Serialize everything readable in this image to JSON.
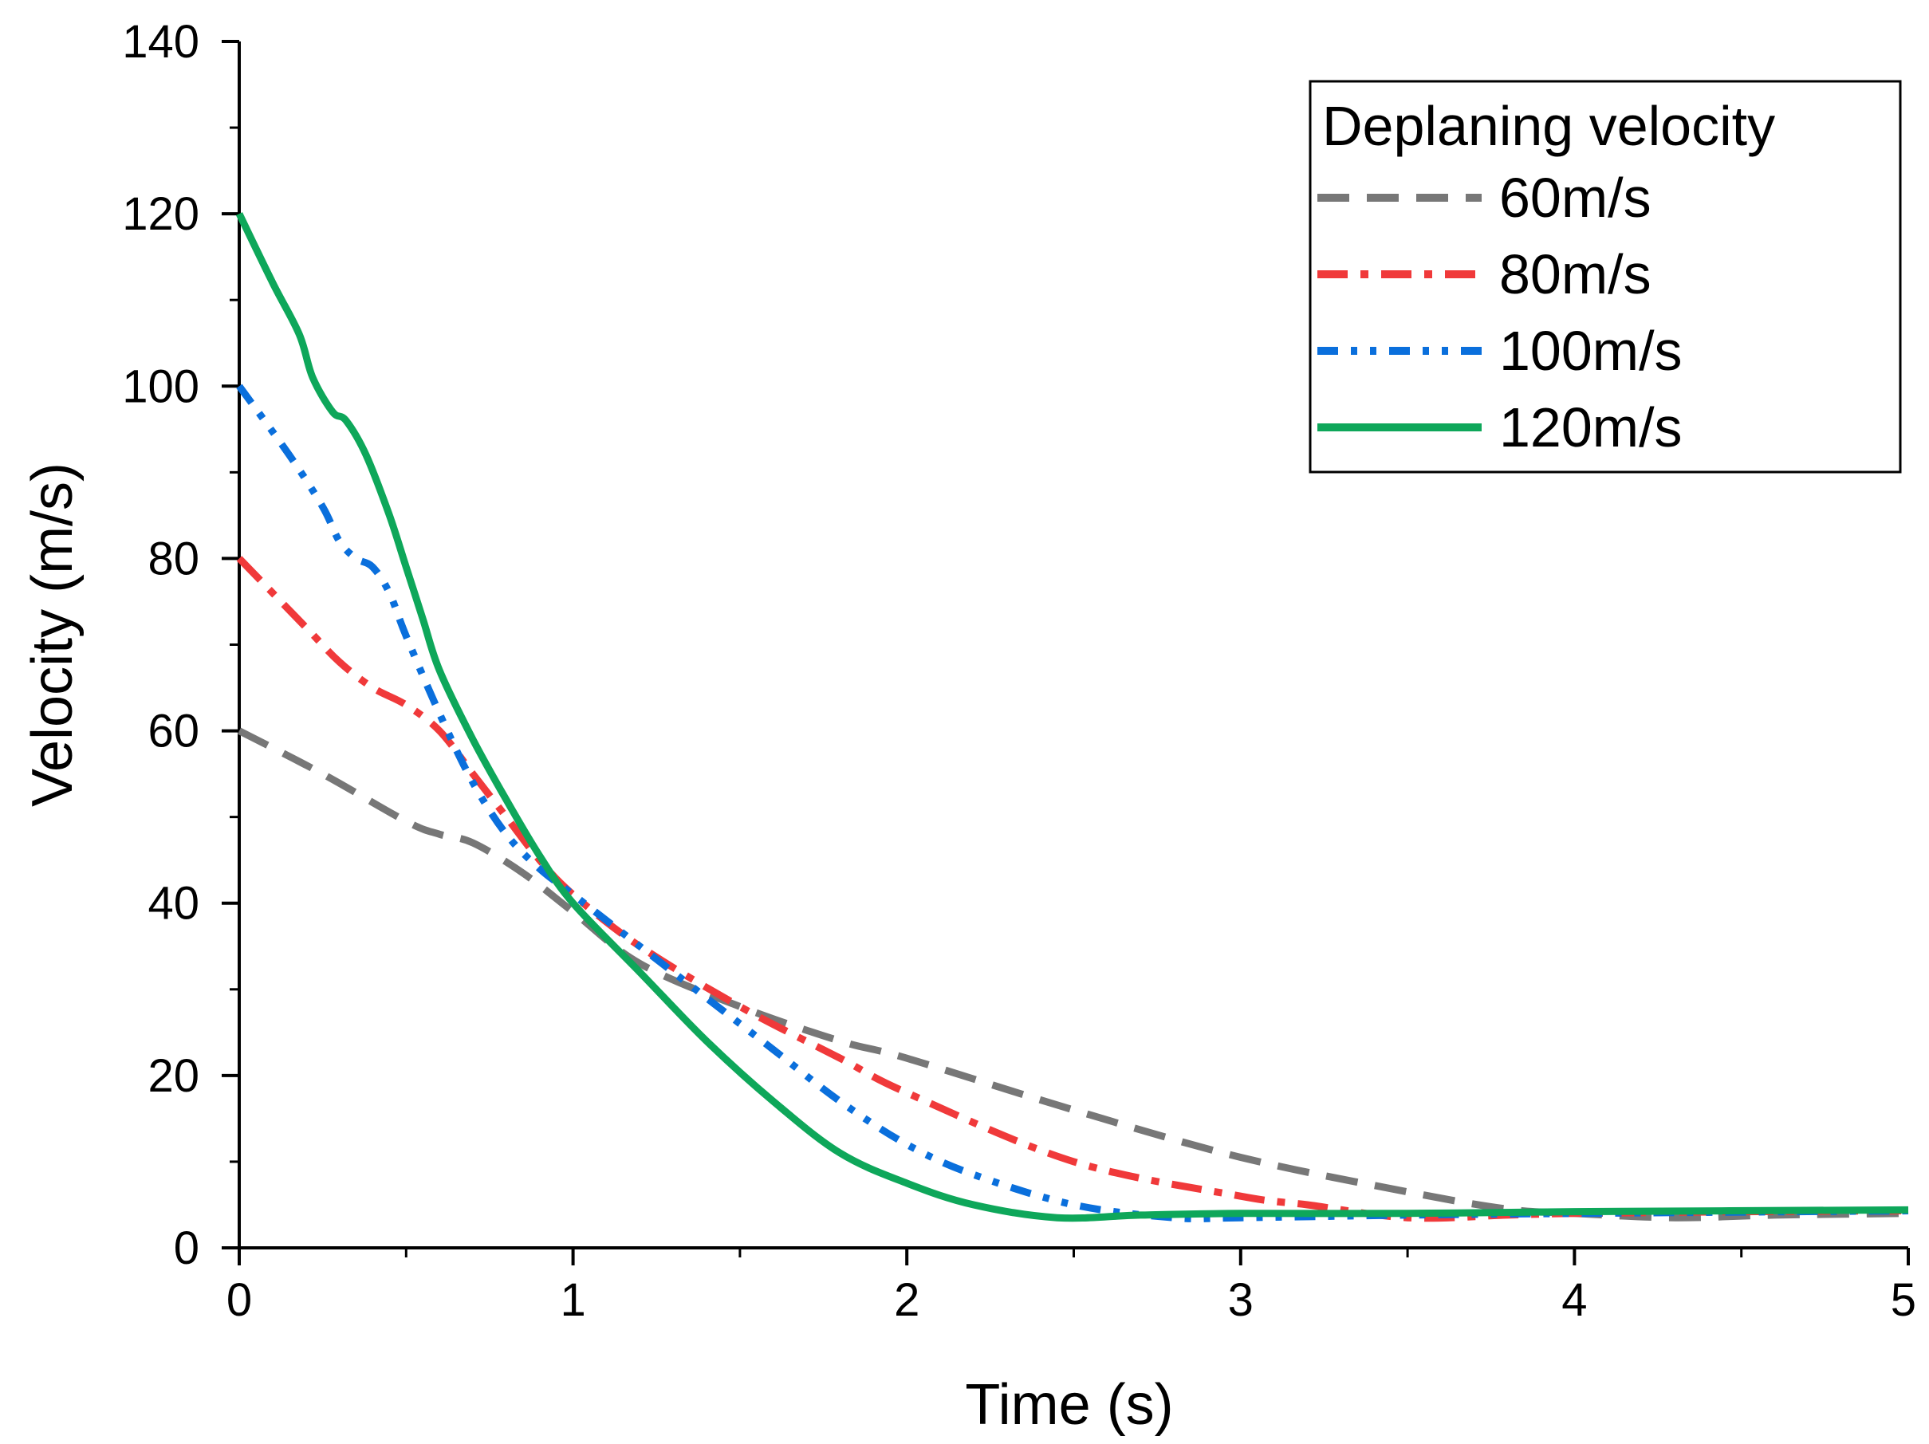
{
  "chart_data": {
    "type": "line",
    "xlabel": "Time (s)",
    "ylabel": "Velocity (m/s)",
    "xlim": [
      0,
      5
    ],
    "ylim": [
      0,
      140
    ],
    "x_ticks": [
      "0",
      "1",
      "2",
      "3",
      "4",
      "5"
    ],
    "y_ticks": [
      "0",
      "20",
      "40",
      "60",
      "80",
      "100",
      "120",
      "140"
    ],
    "grid": false,
    "legend": {
      "title": "Deplaning velocity",
      "position": "top-right"
    },
    "series": [
      {
        "name": "60m/s",
        "color": "#777777",
        "style": "dash",
        "x": [
          0,
          0.25,
          0.5,
          0.6,
          0.7,
          0.85,
          1.0,
          1.2,
          1.5,
          1.8,
          2.0,
          2.5,
          3.0,
          3.5,
          3.8,
          4.0,
          4.3,
          4.6,
          5.0
        ],
        "y": [
          60,
          55,
          49.5,
          48,
          47,
          43.5,
          39,
          33,
          28,
          24,
          22,
          16,
          10.5,
          6.5,
          4.5,
          4,
          3.5,
          3.8,
          4
        ]
      },
      {
        "name": "80m/s",
        "color": "#f0393a",
        "style": "dashdot",
        "x": [
          0,
          0.2,
          0.3,
          0.4,
          0.5,
          0.6,
          0.7,
          0.8,
          0.9,
          1.0,
          1.2,
          1.5,
          1.8,
          2.0,
          2.5,
          3.0,
          3.2,
          3.5,
          3.8,
          4.0,
          4.5,
          5.0
        ],
        "y": [
          80,
          72,
          68,
          65,
          63,
          60,
          55,
          50,
          45,
          41,
          35,
          28,
          22,
          18,
          10,
          6,
          5,
          3.5,
          3.8,
          4,
          4.2,
          4.3
        ]
      },
      {
        "name": "100m/s",
        "color": "#0a6fdc",
        "style": "shortdot",
        "x": [
          0,
          0.15,
          0.25,
          0.3,
          0.35,
          0.4,
          0.45,
          0.5,
          0.6,
          0.7,
          0.8,
          0.9,
          1.0,
          1.2,
          1.4,
          1.6,
          1.8,
          2.0,
          2.2,
          2.5,
          2.8,
          3.0,
          3.5,
          4.0,
          5.0
        ],
        "y": [
          100,
          92,
          86,
          82,
          80,
          79,
          76,
          71,
          62,
          54,
          48,
          44,
          41,
          35,
          29,
          23,
          17,
          12,
          8.5,
          5,
          3.5,
          3.5,
          3.8,
          4,
          4.3
        ]
      },
      {
        "name": "120m/s",
        "color": "#0ea75a",
        "style": "solid",
        "x": [
          0,
          0.1,
          0.18,
          0.22,
          0.28,
          0.32,
          0.38,
          0.45,
          0.5,
          0.55,
          0.6,
          0.7,
          0.8,
          0.9,
          1.0,
          1.2,
          1.4,
          1.6,
          1.8,
          2.0,
          2.2,
          2.45,
          2.7,
          3.0,
          3.5,
          4.0,
          5.0
        ],
        "y": [
          120,
          112,
          106,
          101,
          97,
          96,
          92,
          85,
          79,
          73,
          67,
          59,
          52,
          45.5,
          40,
          32,
          24,
          17,
          11,
          7.5,
          5,
          3.5,
          3.8,
          4,
          4,
          4.2,
          4.4
        ]
      }
    ]
  }
}
